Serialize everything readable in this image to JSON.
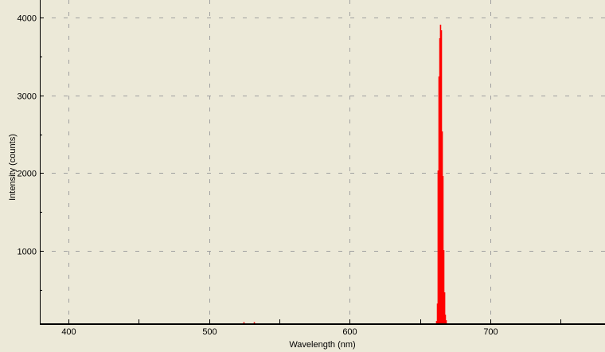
{
  "chart_data": {
    "type": "bar",
    "title": "",
    "xlabel": "Wavelength (nm)",
    "ylabel": "Intensity (counts)",
    "xlim": [
      379.6,
      781.5
    ],
    "ylim": [
      70,
      4225
    ],
    "x_ticks": [
      400,
      500,
      600,
      700
    ],
    "x_minor_ticks": [
      450,
      550,
      650,
      750
    ],
    "y_ticks": [
      1000,
      2000,
      3000,
      4000
    ],
    "grid": true,
    "legend": "none",
    "bar_color": "#ff0000",
    "grid_color": "#a0a0a0",
    "background": "#ece9d8",
    "x": [
      524.6,
      532.0,
      661.6,
      662.2,
      662.7,
      663.3,
      663.9,
      664.4,
      665.0,
      665.6,
      666.1,
      666.7,
      667.3,
      667.8,
      668.4
    ],
    "values": [
      85,
      85,
      100,
      324,
      2034,
      3242,
      3734,
      3908,
      3836,
      2536,
      1963,
      1010,
      468,
      181,
      110
    ]
  }
}
